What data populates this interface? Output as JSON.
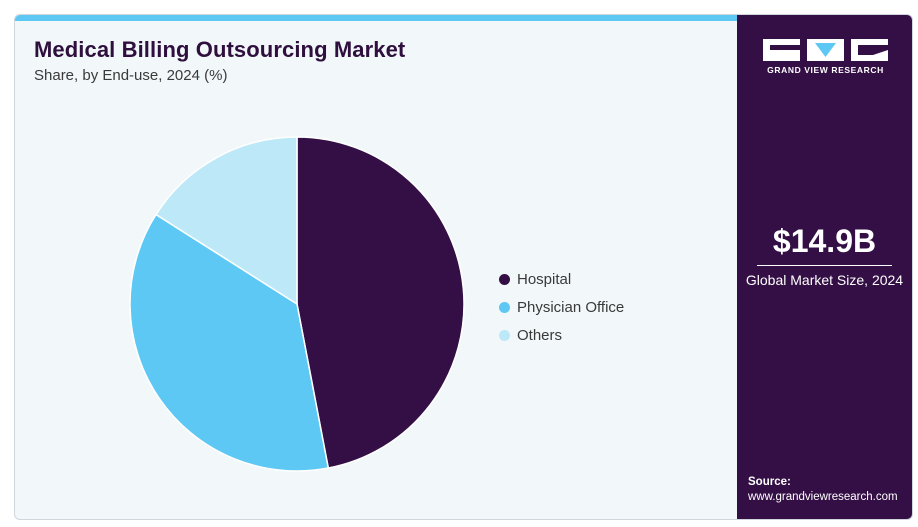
{
  "header": {
    "title": "Medical Billing Outsourcing Market",
    "subtitle": "Share, by End-use, 2024 (%)"
  },
  "chart_data": {
    "type": "pie",
    "categories": [
      "Hospital",
      "Physician Office",
      "Others"
    ],
    "values": [
      47,
      37,
      16
    ],
    "colors": [
      "#340f45",
      "#5ec8f4",
      "#bde8f8"
    ],
    "legend_position": "right"
  },
  "sidebar": {
    "brand": "GRAND VIEW RESEARCH",
    "market_size_value": "$14.9B",
    "market_size_label": "Global Market Size, 2024",
    "source_label": "Source:",
    "source_url": "www.grandviewresearch.com"
  }
}
